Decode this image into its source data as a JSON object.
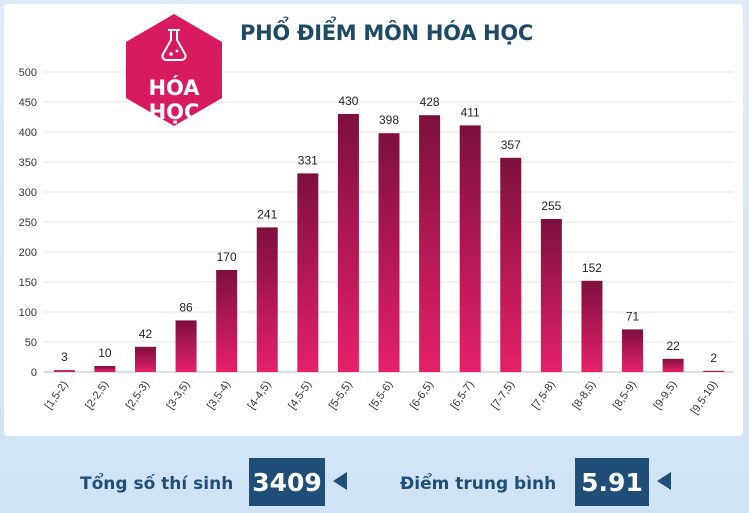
{
  "header": {
    "title": "PHỔ ĐIỂM MÔN HÓA HỌC",
    "badge_line1": "HÓA",
    "badge_line2": "HỌC",
    "badge_icon": "flask-icon"
  },
  "colors": {
    "bar_top": "#7d0f3f",
    "bar_bottom": "#e6206a",
    "badge": "#d81b60",
    "accent_navy": "#1f4e79",
    "title": "#1d4a66"
  },
  "chart_data": {
    "type": "bar",
    "title": "PHỔ ĐIỂM MÔN HÓA HỌC",
    "xlabel": "",
    "ylabel": "",
    "categories": [
      "[1,5-2)",
      "[2-2,5)",
      "[2,5-3)",
      "[3-3,5)",
      "[3,5-4)",
      "[4-4,5)",
      "[4,5-5)",
      "[5-5,5)",
      "[5,5-6)",
      "[6-6,5)",
      "[6,5-7)",
      "[7-7,5)",
      "[7,5-8)",
      "[8-8,5)",
      "[8,5-9)",
      "[9-9,5)",
      "[9,5-10)"
    ],
    "values": [
      3,
      10,
      42,
      86,
      170,
      241,
      331,
      430,
      398,
      428,
      411,
      357,
      255,
      152,
      71,
      22,
      2
    ],
    "ylim": [
      0,
      500
    ],
    "yticks": [
      0,
      50,
      100,
      150,
      200,
      250,
      300,
      350,
      400,
      450,
      500
    ],
    "grid": true,
    "legend": "none"
  },
  "footer": {
    "total_label": "Tổng số thí sinh",
    "total_value": "3409",
    "avg_label": "Điểm trung bình",
    "avg_value": "5.91"
  }
}
